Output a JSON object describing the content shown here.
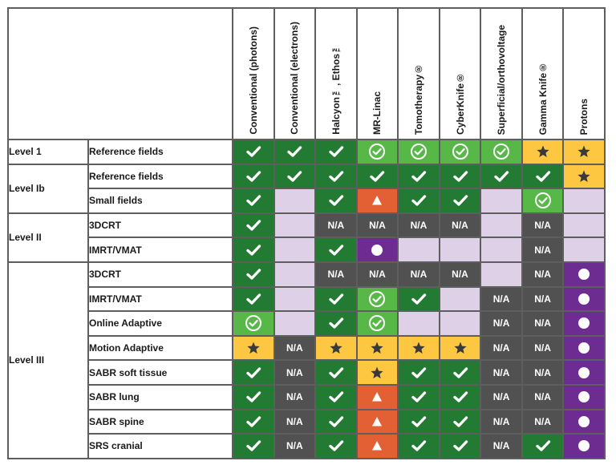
{
  "columns": [
    "Conventional (photons)",
    "Conventional (electrons)",
    "Halcyon™, Ethos™",
    "MR-Linac",
    "Tomotherapy®",
    "CyberKnife®",
    "Superficial/orthovoltage",
    "Gamma Knife®",
    "Protons"
  ],
  "levels": [
    {
      "label": "Level 1",
      "span": 1
    },
    {
      "label": "Level Ib",
      "span": 2
    },
    {
      "label": "Level II",
      "span": 2
    },
    {
      "label": "Level III",
      "span": 8
    }
  ],
  "rows": [
    {
      "label": "Reference fields",
      "cells": [
        [
          "dg",
          "check"
        ],
        [
          "dg",
          "check"
        ],
        [
          "dg",
          "check"
        ],
        [
          "lg",
          "circle-check"
        ],
        [
          "lg",
          "circle-check"
        ],
        [
          "lg",
          "circle-check"
        ],
        [
          "lg",
          "circle-check"
        ],
        [
          "y",
          "star"
        ],
        [
          "y",
          "star"
        ]
      ]
    },
    {
      "label": "Reference fields",
      "cells": [
        [
          "dg",
          "check"
        ],
        [
          "dg",
          "check"
        ],
        [
          "dg",
          "check"
        ],
        [
          "dg",
          "check"
        ],
        [
          "dg",
          "check"
        ],
        [
          "dg",
          "check"
        ],
        [
          "dg",
          "check"
        ],
        [
          "dg",
          "check"
        ],
        [
          "y",
          "star"
        ]
      ]
    },
    {
      "label": "Small fields",
      "cells": [
        [
          "dg",
          "check"
        ],
        [
          "l",
          ""
        ],
        [
          "dg",
          "check"
        ],
        [
          "o",
          "triangle"
        ],
        [
          "dg",
          "check"
        ],
        [
          "dg",
          "check"
        ],
        [
          "l",
          ""
        ],
        [
          "lg",
          "circle-check"
        ],
        [
          "l",
          ""
        ]
      ]
    },
    {
      "label": "3DCRT",
      "cells": [
        [
          "dg",
          "check"
        ],
        [
          "l",
          ""
        ],
        [
          "gr",
          "na"
        ],
        [
          "gr",
          "na"
        ],
        [
          "gr",
          "na"
        ],
        [
          "gr",
          "na"
        ],
        [
          "l",
          ""
        ],
        [
          "gr",
          "na"
        ],
        [
          "l",
          ""
        ]
      ]
    },
    {
      "label": "IMRT/VMAT",
      "cells": [
        [
          "dg",
          "check"
        ],
        [
          "l",
          ""
        ],
        [
          "dg",
          "check"
        ],
        [
          "p",
          "dot"
        ],
        [
          "l",
          ""
        ],
        [
          "l",
          ""
        ],
        [
          "l",
          ""
        ],
        [
          "gr",
          "na"
        ],
        [
          "l",
          ""
        ]
      ]
    },
    {
      "label": "3DCRT",
      "cells": [
        [
          "dg",
          "check"
        ],
        [
          "l",
          ""
        ],
        [
          "gr",
          "na"
        ],
        [
          "gr",
          "na"
        ],
        [
          "gr",
          "na"
        ],
        [
          "gr",
          "na"
        ],
        [
          "l",
          ""
        ],
        [
          "gr",
          "na"
        ],
        [
          "p",
          "dot"
        ]
      ]
    },
    {
      "label": "IMRT/VMAT",
      "cells": [
        [
          "dg",
          "check"
        ],
        [
          "l",
          ""
        ],
        [
          "dg",
          "check"
        ],
        [
          "lg",
          "circle-check"
        ],
        [
          "dg",
          "check"
        ],
        [
          "l",
          ""
        ],
        [
          "gr",
          "na"
        ],
        [
          "gr",
          "na"
        ],
        [
          "p",
          "dot"
        ]
      ]
    },
    {
      "label": "Online Adaptive",
      "cells": [
        [
          "lg",
          "circle-check"
        ],
        [
          "l",
          ""
        ],
        [
          "dg",
          "check"
        ],
        [
          "lg",
          "circle-check"
        ],
        [
          "l",
          ""
        ],
        [
          "l",
          ""
        ],
        [
          "gr",
          "na"
        ],
        [
          "gr",
          "na"
        ],
        [
          "p",
          "dot"
        ]
      ]
    },
    {
      "label": "Motion Adaptive",
      "cells": [
        [
          "y",
          "star"
        ],
        [
          "gr",
          "na"
        ],
        [
          "y",
          "star"
        ],
        [
          "y",
          "star"
        ],
        [
          "y",
          "star"
        ],
        [
          "y",
          "star"
        ],
        [
          "gr",
          "na"
        ],
        [
          "gr",
          "na"
        ],
        [
          "p",
          "dot"
        ]
      ]
    },
    {
      "label": "SABR soft tissue",
      "cells": [
        [
          "dg",
          "check"
        ],
        [
          "gr",
          "na"
        ],
        [
          "dg",
          "check"
        ],
        [
          "y",
          "star"
        ],
        [
          "dg",
          "check"
        ],
        [
          "dg",
          "check"
        ],
        [
          "gr",
          "na"
        ],
        [
          "gr",
          "na"
        ],
        [
          "p",
          "dot"
        ]
      ]
    },
    {
      "label": "SABR lung",
      "cells": [
        [
          "dg",
          "check"
        ],
        [
          "gr",
          "na"
        ],
        [
          "dg",
          "check"
        ],
        [
          "o",
          "triangle"
        ],
        [
          "dg",
          "check"
        ],
        [
          "dg",
          "check"
        ],
        [
          "gr",
          "na"
        ],
        [
          "gr",
          "na"
        ],
        [
          "p",
          "dot"
        ]
      ]
    },
    {
      "label": "SABR spine",
      "cells": [
        [
          "dg",
          "check"
        ],
        [
          "gr",
          "na"
        ],
        [
          "dg",
          "check"
        ],
        [
          "o",
          "triangle"
        ],
        [
          "dg",
          "check"
        ],
        [
          "dg",
          "check"
        ],
        [
          "gr",
          "na"
        ],
        [
          "gr",
          "na"
        ],
        [
          "p",
          "dot"
        ]
      ]
    },
    {
      "label": "SRS cranial",
      "cells": [
        [
          "dg",
          "check"
        ],
        [
          "gr",
          "na"
        ],
        [
          "dg",
          "check"
        ],
        [
          "o",
          "triangle"
        ],
        [
          "dg",
          "check"
        ],
        [
          "dg",
          "check"
        ],
        [
          "gr",
          "na"
        ],
        [
          "dg",
          "check"
        ],
        [
          "p",
          "dot"
        ]
      ]
    }
  ],
  "na_text": "N/A",
  "colors": {
    "dg": "#237a33",
    "lg": "#57b848",
    "y": "#fdc741",
    "o": "#e35f34",
    "p": "#6c2c91",
    "l": "#ded0e6",
    "gr": "#515151"
  }
}
